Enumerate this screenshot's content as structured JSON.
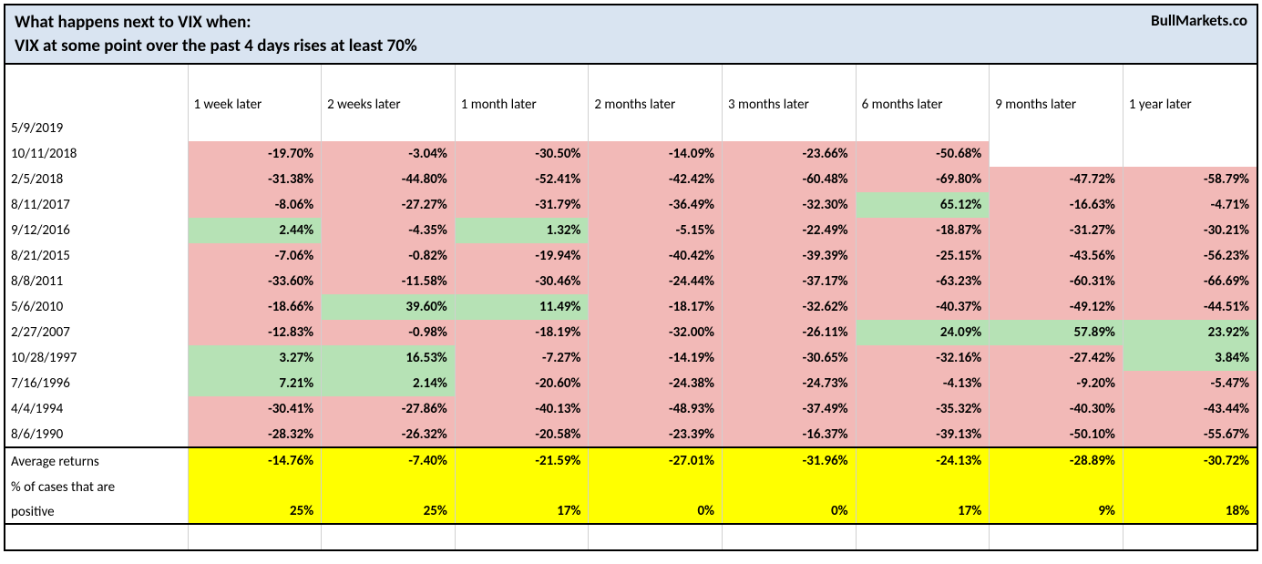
{
  "header": {
    "line1": "What happens next to VIX when:",
    "line2": "VIX at some point over the past 4 days rises at least 70%",
    "brand": "BullMarkets.co"
  },
  "columns": [
    "1 week later",
    "2 weeks later",
    "1 month later",
    "2 months later",
    "3 months later",
    "6 months later",
    "9 months later",
    "1 year later"
  ],
  "rows": [
    {
      "date": "5/9/2019",
      "cells": [
        null,
        null,
        null,
        null,
        null,
        null,
        null,
        null
      ]
    },
    {
      "date": "10/11/2018",
      "cells": [
        "-19.70%",
        "-3.04%",
        "-30.50%",
        "-14.09%",
        "-23.66%",
        "-50.68%",
        null,
        null
      ]
    },
    {
      "date": "2/5/2018",
      "cells": [
        "-31.38%",
        "-44.80%",
        "-52.41%",
        "-42.42%",
        "-60.48%",
        "-69.80%",
        "-47.72%",
        "-58.79%"
      ]
    },
    {
      "date": "8/11/2017",
      "cells": [
        "-8.06%",
        "-27.27%",
        "-31.79%",
        "-36.49%",
        "-32.30%",
        "65.12%",
        "-16.63%",
        "-4.71%"
      ]
    },
    {
      "date": "9/12/2016",
      "cells": [
        "2.44%",
        "-4.35%",
        "1.32%",
        "-5.15%",
        "-22.49%",
        "-18.87%",
        "-31.27%",
        "-30.21%"
      ]
    },
    {
      "date": "8/21/2015",
      "cells": [
        "-7.06%",
        "-0.82%",
        "-19.94%",
        "-40.42%",
        "-39.39%",
        "-25.15%",
        "-43.56%",
        "-56.23%"
      ]
    },
    {
      "date": "8/8/2011",
      "cells": [
        "-33.60%",
        "-11.58%",
        "-30.46%",
        "-24.44%",
        "-37.17%",
        "-63.23%",
        "-60.31%",
        "-66.69%"
      ]
    },
    {
      "date": "5/6/2010",
      "cells": [
        "-18.66%",
        "39.60%",
        "11.49%",
        "-18.17%",
        "-32.62%",
        "-40.37%",
        "-49.12%",
        "-44.51%"
      ]
    },
    {
      "date": "2/27/2007",
      "cells": [
        "-12.83%",
        "-0.98%",
        "-18.19%",
        "-32.00%",
        "-26.11%",
        "24.09%",
        "57.89%",
        "23.92%"
      ]
    },
    {
      "date": "10/28/1997",
      "cells": [
        "3.27%",
        "16.53%",
        "-7.27%",
        "-14.19%",
        "-30.65%",
        "-32.16%",
        "-27.42%",
        "3.84%"
      ]
    },
    {
      "date": "7/16/1996",
      "cells": [
        "7.21%",
        "2.14%",
        "-20.60%",
        "-24.38%",
        "-24.73%",
        "-4.13%",
        "-9.20%",
        "-5.47%"
      ]
    },
    {
      "date": "4/4/1994",
      "cells": [
        "-30.41%",
        "-27.86%",
        "-40.13%",
        "-48.93%",
        "-37.49%",
        "-35.32%",
        "-40.30%",
        "-43.44%"
      ]
    },
    {
      "date": "8/6/1990",
      "cells": [
        "-28.32%",
        "-26.32%",
        "-20.58%",
        "-23.39%",
        "-16.37%",
        "-39.13%",
        "-50.10%",
        "-55.67%"
      ]
    }
  ],
  "summary": {
    "avg_label": "Average returns",
    "avg": [
      "-14.76%",
      "-7.40%",
      "-21.59%",
      "-27.01%",
      "-31.96%",
      "-24.13%",
      "-28.89%",
      "-30.72%"
    ],
    "pct_label_1": "% of cases that are",
    "pct_label_2": "positive",
    "pct": [
      "25%",
      "25%",
      "17%",
      "0%",
      "0%",
      "17%",
      "9%",
      "18%"
    ]
  },
  "colors": {
    "header_bg": "#d9e4f1",
    "neg_bg": "#f2b9b7",
    "pos_bg": "#b6e2b5",
    "highlight_bg": "#ffff00",
    "border": "#000000",
    "cell_border": "#d0d0d0"
  }
}
